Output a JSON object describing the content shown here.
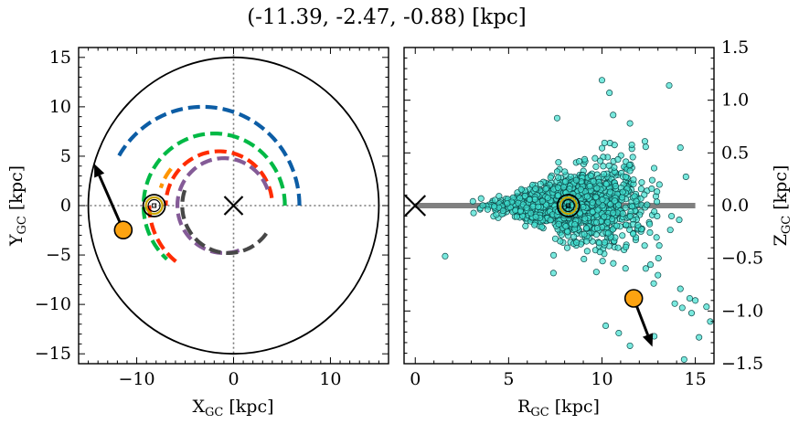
{
  "title": "(-11.39, -2.47, -0.88) [kpc]",
  "chart_data": [
    {
      "type": "line",
      "panel": "left",
      "xlabel": "X",
      "xlabel_sub": "GC",
      "xlabel_unit": " [kpc]",
      "ylabel": "Y",
      "ylabel_sub": "GC",
      "ylabel_unit": " [kpc]",
      "xlim": [
        -16,
        16
      ],
      "ylim": [
        -16,
        16
      ],
      "xticks": [
        -10,
        0,
        10
      ],
      "xtick_labels": [
        "−10",
        "0",
        "10"
      ],
      "yticks": [
        -15,
        -10,
        -5,
        0,
        5,
        10,
        15
      ],
      "ytick_labels": [
        "−15",
        "−10",
        "−5",
        "0",
        "5",
        "10",
        "15"
      ],
      "grid": false,
      "reference_lines": {
        "x": 0,
        "y": 0,
        "style": "dotted"
      },
      "outer_circle_radius": 15,
      "galactic_center": [
        0,
        0
      ],
      "sun_position": [
        -8.2,
        0
      ],
      "arcs": [
        {
          "color": "#0c5da5",
          "center": [
            -3.2,
            0
          ],
          "radius": 10,
          "angle_start_deg": 0,
          "angle_end_deg": 150
        },
        {
          "color": "#00b945",
          "center": [
            -2.0,
            0
          ],
          "radius": 7.3,
          "angle_start_deg": 0,
          "angle_end_deg": 228
        },
        {
          "color": "#ff9500",
          "center": [
            -2.0,
            0
          ],
          "radius": 5.8,
          "angle_start_deg": 140,
          "angle_end_deg": 162
        },
        {
          "color": "#ff2c00",
          "center": [
            -1.5,
            0
          ],
          "radius": 7.2,
          "angle_start_deg": 180,
          "angle_end_deg": 236
        },
        {
          "color": "#ff2c00",
          "center": [
            -1.5,
            0
          ],
          "radius": 5.5,
          "angle_start_deg": 8,
          "angle_end_deg": 180
        },
        {
          "color": "#845b97",
          "center": [
            -1.0,
            0
          ],
          "radius": 4.8,
          "angle_start_deg": 20,
          "angle_end_deg": 294
        },
        {
          "color": "#474747",
          "center": [
            -0.5,
            0
          ],
          "radius": 4.8,
          "angle_start_deg": 161,
          "angle_end_deg": 330
        }
      ],
      "object": {
        "x": -11.39,
        "y": -2.47,
        "vx": -3.0,
        "vy": 6.7,
        "color": "#fca311"
      }
    },
    {
      "type": "scatter",
      "panel": "right",
      "xlabel": "R",
      "xlabel_sub": "GC",
      "xlabel_unit": " [kpc]",
      "ylabel": "Z",
      "ylabel_sub": "GC",
      "ylabel_unit": " [kpc]",
      "xlim": [
        -0.6,
        16
      ],
      "ylim": [
        -1.5,
        1.5
      ],
      "xticks": [
        0,
        5,
        10,
        15
      ],
      "xtick_labels": [
        "0",
        "5",
        "10",
        "15"
      ],
      "yticks": [
        -1.5,
        -1.0,
        -0.5,
        0.0,
        0.5,
        1.0,
        1.5
      ],
      "ytick_labels": [
        "−1.5",
        "−1.0",
        "−0.5",
        "0.0",
        "0.5",
        "1.0",
        "1.5"
      ],
      "grid": false,
      "point_color": "#40e0d0",
      "disk_band": {
        "x": [
          0,
          15
        ],
        "y": 0,
        "color": "#808080"
      },
      "galactic_center": [
        0,
        0
      ],
      "sun_position": [
        8.2,
        0
      ],
      "cluster": {
        "x_range": [
          3,
          15.5
        ],
        "center_x": 8.5,
        "spread_y": 0.25
      },
      "outliers": [
        {
          "x": 10.0,
          "y": 1.19
        },
        {
          "x": 13.6,
          "y": 1.14
        },
        {
          "x": 10.4,
          "y": 1.07
        },
        {
          "x": 7.6,
          "y": 0.83
        },
        {
          "x": 10.6,
          "y": 0.86
        },
        {
          "x": 12.3,
          "y": 0.61
        },
        {
          "x": 11.5,
          "y": 0.78
        },
        {
          "x": 14.2,
          "y": 0.55
        },
        {
          "x": 1.6,
          "y": -0.48
        },
        {
          "x": 7.4,
          "y": -0.64
        },
        {
          "x": 9.7,
          "y": -0.63
        },
        {
          "x": 12.6,
          "y": -0.56
        },
        {
          "x": 13.0,
          "y": -0.66
        },
        {
          "x": 14.2,
          "y": -0.79
        },
        {
          "x": 14.7,
          "y": -0.88
        },
        {
          "x": 15.0,
          "y": -0.9
        },
        {
          "x": 14.3,
          "y": -0.97
        },
        {
          "x": 15.6,
          "y": -0.96
        },
        {
          "x": 13.9,
          "y": -0.93
        },
        {
          "x": 14.8,
          "y": -1.02
        },
        {
          "x": 15.8,
          "y": -1.1
        },
        {
          "x": 10.2,
          "y": -1.14
        },
        {
          "x": 12.8,
          "y": -1.24
        },
        {
          "x": 10.9,
          "y": -1.21
        },
        {
          "x": 11.5,
          "y": -1.33
        },
        {
          "x": 15.2,
          "y": -1.25
        },
        {
          "x": 14.4,
          "y": -1.46
        }
      ],
      "object": {
        "x": 11.7,
        "y": -0.88,
        "vx": 1.0,
        "vy": -0.46,
        "color": "#fca311"
      }
    }
  ]
}
